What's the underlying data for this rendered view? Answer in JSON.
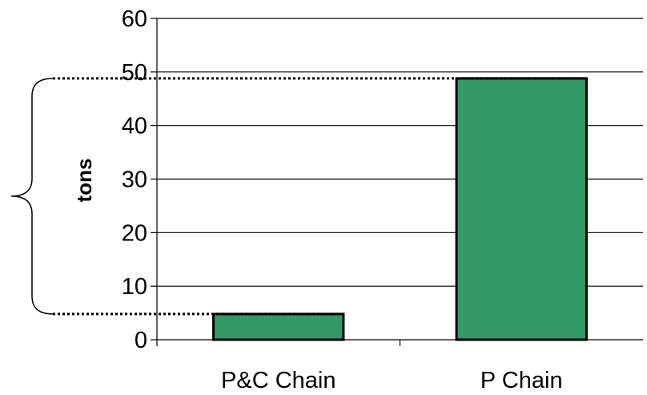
{
  "chart_data": {
    "type": "bar",
    "categories": [
      "P&C Chain",
      "P Chain"
    ],
    "values": [
      4.8,
      48.8
    ],
    "title": "",
    "xlabel": "",
    "ylabel": "tons",
    "ylim": [
      0,
      60
    ],
    "yticks": [
      0,
      10,
      20,
      30,
      40,
      50,
      60
    ],
    "grid": true,
    "bar_color": "#339966",
    "bar_edge_color": "#000000",
    "annotation": {
      "type": "brace-range",
      "from": 4.8,
      "to": 48.8,
      "line_style": "dotted"
    }
  }
}
